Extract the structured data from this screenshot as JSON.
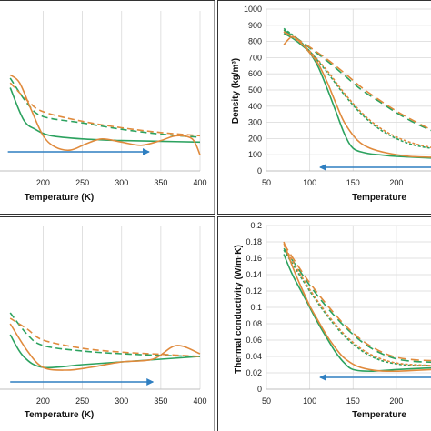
{
  "colors": {
    "green": "#2ca25f",
    "orange": "#e08a3c",
    "arrow": "#2f7fc1",
    "grid": "#d9d9d9"
  },
  "chart_data": [
    {
      "type": "line",
      "panel": "top-left",
      "xlabel": "Temperature (K)",
      "ylabel": "",
      "x_ticks": [
        "200",
        "250",
        "300",
        "350",
        "400"
      ],
      "y_ticks": [],
      "grid": true,
      "arrow": {
        "direction": "right",
        "x_from": 155,
        "x_to": 335
      },
      "series": [
        {
          "color": "green",
          "dash": "solid",
          "x": [
            158,
            175,
            190,
            210,
            250,
            300,
            350,
            400
          ],
          "y": [
            0.52,
            0.32,
            0.26,
            0.22,
            0.2,
            0.19,
            0.185,
            0.18
          ]
        },
        {
          "color": "green",
          "dash": "dashed",
          "x": [
            158,
            180,
            200,
            250,
            300,
            350,
            400
          ],
          "y": [
            0.58,
            0.42,
            0.34,
            0.3,
            0.26,
            0.23,
            0.21
          ]
        },
        {
          "color": "orange",
          "dash": "solid",
          "x": [
            158,
            170,
            185,
            200,
            215,
            235,
            255,
            275,
            300,
            325,
            350,
            370,
            390,
            400
          ],
          "y": [
            0.6,
            0.55,
            0.38,
            0.22,
            0.15,
            0.13,
            0.17,
            0.2,
            0.18,
            0.16,
            0.19,
            0.22,
            0.2,
            0.1
          ]
        },
        {
          "color": "orange",
          "dash": "dashed",
          "x": [
            158,
            180,
            200,
            250,
            300,
            350,
            400
          ],
          "y": [
            0.55,
            0.44,
            0.37,
            0.31,
            0.27,
            0.24,
            0.22
          ]
        }
      ]
    },
    {
      "type": "line",
      "panel": "top-right",
      "xlabel": "Temperature",
      "ylabel": "Density (kg/m³)",
      "x_ticks": [
        "50",
        "100",
        "150",
        "200",
        "2"
      ],
      "y_ticks": [
        "0",
        "100",
        "200",
        "300",
        "400",
        "500",
        "600",
        "700",
        "800",
        "900",
        "1000"
      ],
      "xlim": [
        50,
        240
      ],
      "ylim": [
        0,
        1000
      ],
      "grid": true,
      "arrow": {
        "direction": "left",
        "x_from": 240,
        "x_to": 112
      },
      "series": [
        {
          "color": "green",
          "dash": "solid",
          "x": [
            70,
            80,
            90,
            100,
            110,
            120,
            130,
            140,
            150,
            165,
            180,
            200,
            240
          ],
          "y": [
            850,
            820,
            780,
            730,
            640,
            510,
            370,
            230,
            140,
            110,
            100,
            90,
            80
          ]
        },
        {
          "color": "green",
          "dash": "short-dash",
          "x": [
            70,
            85,
            100,
            120,
            140,
            160,
            180,
            200,
            220,
            240
          ],
          "y": [
            880,
            820,
            740,
            610,
            470,
            350,
            260,
            200,
            160,
            140
          ]
        },
        {
          "color": "green",
          "dash": "long-dash",
          "x": [
            70,
            85,
            100,
            120,
            140,
            160,
            180,
            200,
            220,
            240
          ],
          "y": [
            870,
            820,
            760,
            680,
            590,
            500,
            430,
            360,
            300,
            250
          ]
        },
        {
          "color": "orange",
          "dash": "solid",
          "x": [
            70,
            80,
            90,
            100,
            110,
            120,
            130,
            140,
            155,
            170,
            190,
            215,
            240
          ],
          "y": [
            780,
            830,
            790,
            730,
            660,
            550,
            420,
            300,
            190,
            140,
            110,
            90,
            85
          ]
        },
        {
          "color": "orange",
          "dash": "short-dash",
          "x": [
            70,
            85,
            100,
            120,
            140,
            160,
            180,
            200,
            220,
            240
          ],
          "y": [
            860,
            810,
            740,
            620,
            480,
            360,
            270,
            210,
            170,
            145
          ]
        },
        {
          "color": "orange",
          "dash": "long-dash",
          "x": [
            70,
            85,
            100,
            120,
            140,
            160,
            180,
            200,
            220,
            240
          ],
          "y": [
            860,
            815,
            765,
            690,
            605,
            515,
            440,
            370,
            310,
            255
          ]
        }
      ]
    },
    {
      "type": "line",
      "panel": "bottom-left",
      "xlabel": "Temperature (K)",
      "ylabel": "",
      "x_ticks": [
        "200",
        "250",
        "300",
        "350",
        "400"
      ],
      "y_ticks": [],
      "grid": true,
      "arrow": {
        "direction": "right",
        "x_from": 158,
        "x_to": 340
      },
      "series": [
        {
          "color": "green",
          "dash": "solid",
          "x": [
            158,
            175,
            200,
            250,
            300,
            350,
            400
          ],
          "y": [
            0.1,
            0.06,
            0.04,
            0.045,
            0.05,
            0.055,
            0.06
          ]
        },
        {
          "color": "green",
          "dash": "dashed",
          "x": [
            158,
            180,
            200,
            250,
            300,
            350,
            400
          ],
          "y": [
            0.14,
            0.1,
            0.08,
            0.07,
            0.065,
            0.062,
            0.06
          ]
        },
        {
          "color": "orange",
          "dash": "solid",
          "x": [
            158,
            180,
            200,
            230,
            260,
            300,
            340,
            370,
            400
          ],
          "y": [
            0.12,
            0.07,
            0.04,
            0.035,
            0.04,
            0.05,
            0.055,
            0.08,
            0.065
          ]
        },
        {
          "color": "orange",
          "dash": "dashed",
          "x": [
            158,
            180,
            200,
            250,
            300,
            350,
            400
          ],
          "y": [
            0.13,
            0.11,
            0.09,
            0.075,
            0.068,
            0.064,
            0.06
          ]
        }
      ]
    },
    {
      "type": "line",
      "panel": "bottom-right",
      "xlabel": "Temperature",
      "ylabel": "Thermal conductivity (W/m·K)",
      "x_ticks": [
        "50",
        "100",
        "150",
        "200",
        "2"
      ],
      "y_ticks": [
        "0",
        "0.02",
        "0.04",
        "0.06",
        "0.08",
        "0.1",
        "0.12",
        "0.14",
        "0.16",
        "0.18",
        "0.2"
      ],
      "xlim": [
        50,
        240
      ],
      "ylim": [
        0,
        0.2
      ],
      "grid": true,
      "arrow": {
        "direction": "left",
        "x_from": 240,
        "x_to": 112
      },
      "series": [
        {
          "color": "green",
          "dash": "solid",
          "x": [
            70,
            80,
            90,
            100,
            110,
            120,
            130,
            140,
            150,
            170,
            200,
            240
          ],
          "y": [
            0.165,
            0.14,
            0.12,
            0.1,
            0.08,
            0.062,
            0.045,
            0.032,
            0.024,
            0.022,
            0.024,
            0.026
          ]
        },
        {
          "color": "green",
          "dash": "short-dash",
          "x": [
            70,
            85,
            100,
            120,
            140,
            160,
            180,
            200,
            220,
            240
          ],
          "y": [
            0.17,
            0.145,
            0.12,
            0.09,
            0.065,
            0.047,
            0.036,
            0.031,
            0.029,
            0.029
          ]
        },
        {
          "color": "green",
          "dash": "long-dash",
          "x": [
            70,
            85,
            100,
            120,
            140,
            160,
            180,
            200,
            220,
            240
          ],
          "y": [
            0.172,
            0.15,
            0.127,
            0.1,
            0.077,
            0.058,
            0.045,
            0.037,
            0.034,
            0.033
          ]
        },
        {
          "color": "orange",
          "dash": "solid",
          "x": [
            70,
            80,
            90,
            100,
            110,
            120,
            130,
            140,
            155,
            175,
            200,
            240
          ],
          "y": [
            0.18,
            0.15,
            0.125,
            0.102,
            0.083,
            0.065,
            0.05,
            0.038,
            0.028,
            0.023,
            0.022,
            0.024
          ]
        },
        {
          "color": "orange",
          "dash": "short-dash",
          "x": [
            70,
            85,
            100,
            120,
            140,
            160,
            180,
            200,
            220,
            240
          ],
          "y": [
            0.176,
            0.148,
            0.122,
            0.092,
            0.067,
            0.049,
            0.038,
            0.032,
            0.03,
            0.029
          ]
        },
        {
          "color": "orange",
          "dash": "long-dash",
          "x": [
            70,
            85,
            100,
            120,
            140,
            160,
            180,
            200,
            220,
            240
          ],
          "y": [
            0.178,
            0.153,
            0.13,
            0.103,
            0.079,
            0.06,
            0.047,
            0.039,
            0.036,
            0.035
          ]
        }
      ]
    }
  ]
}
